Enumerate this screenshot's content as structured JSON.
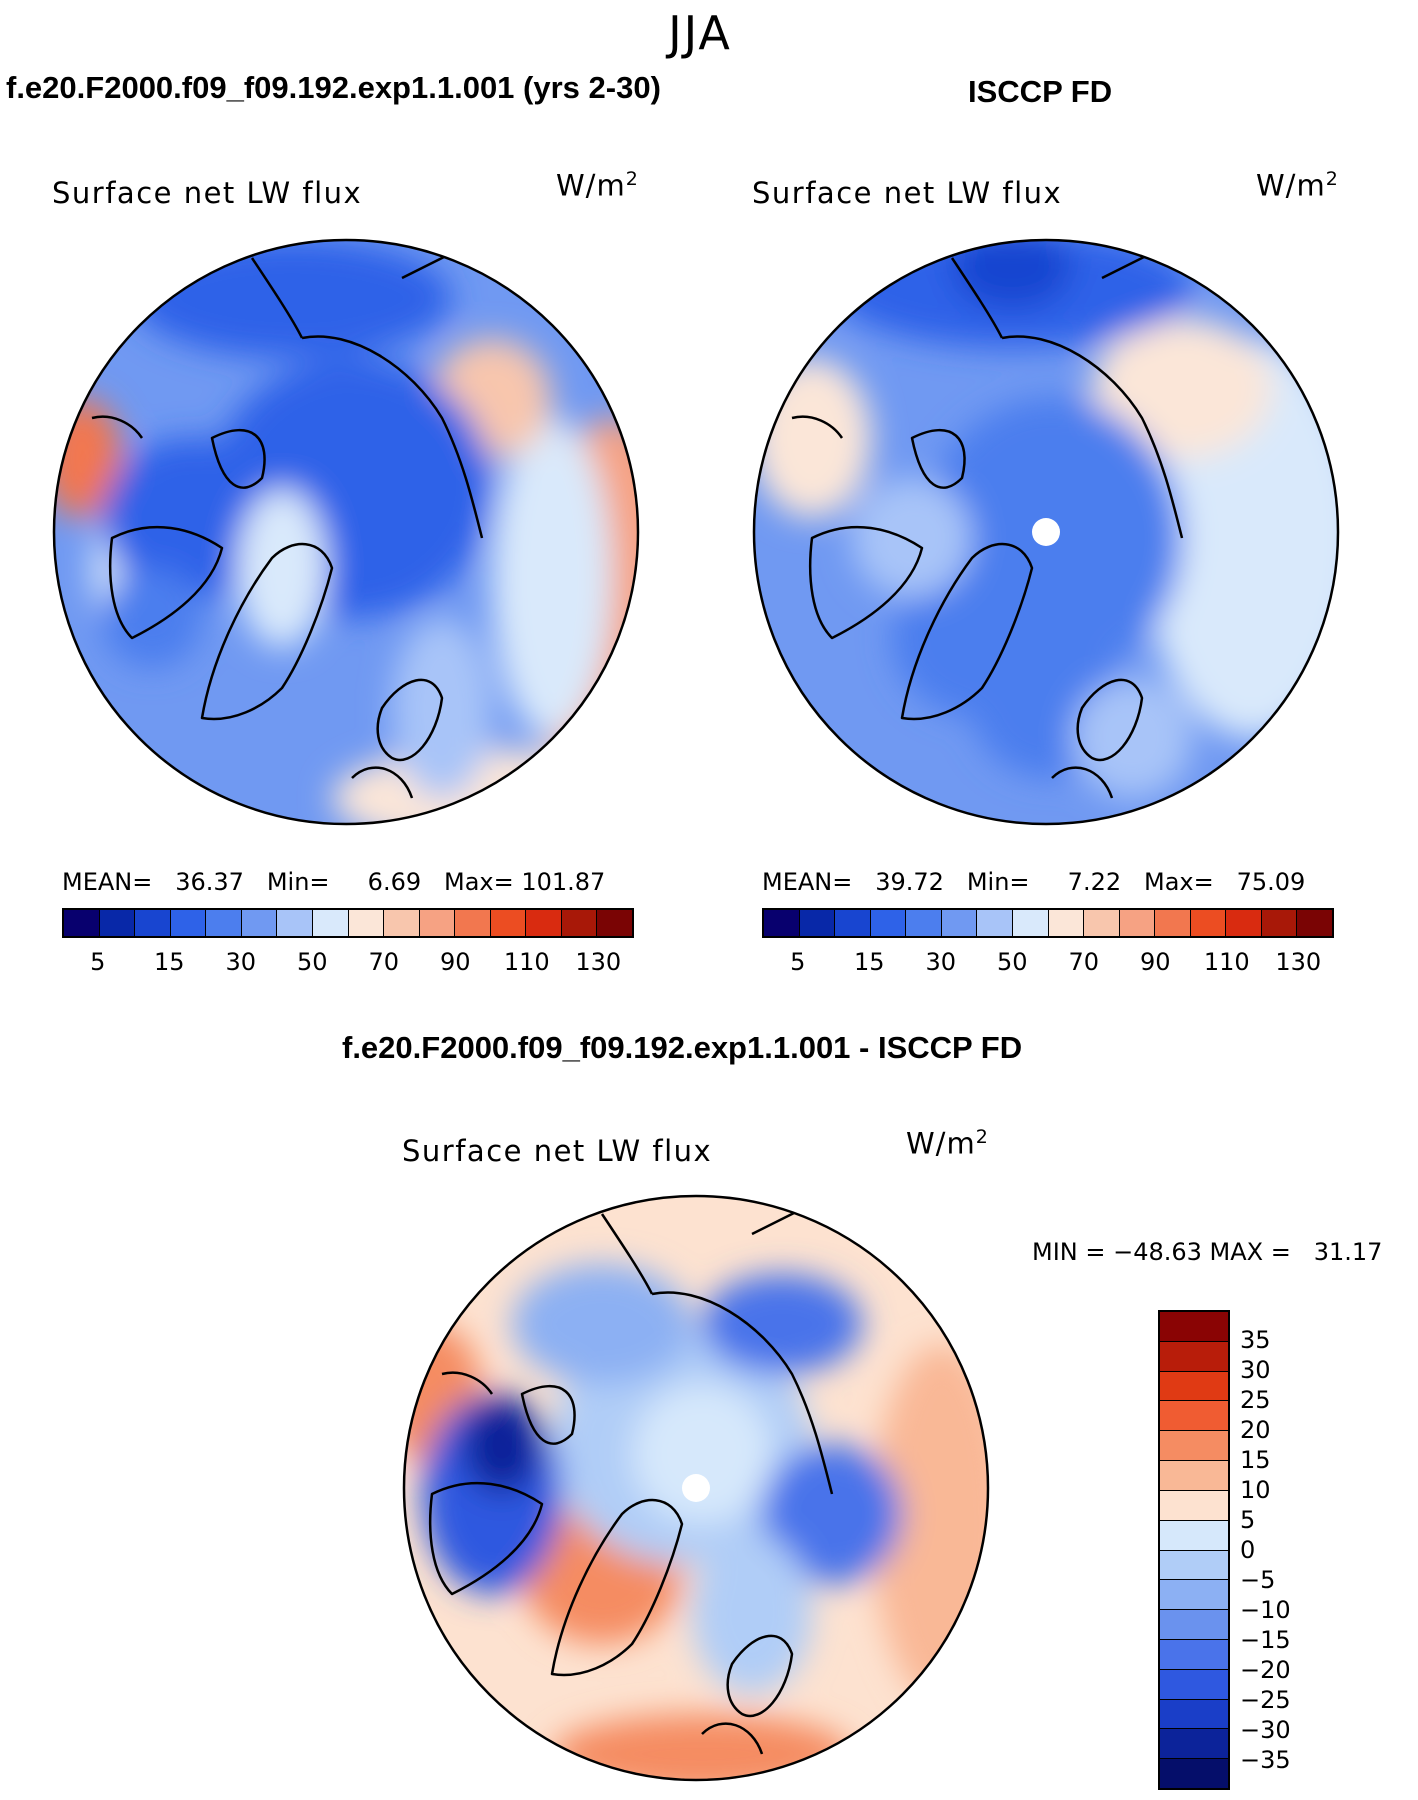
{
  "season": "JJA",
  "panels": {
    "model": {
      "case_title": "f.e20.F2000.f09_f09.192.exp1.1.001 (yrs 2-30)",
      "variable": "Surface net LW flux",
      "units": "W/m",
      "units_exp": "2",
      "stats": "MEAN=   36.37   Min=     6.69   Max= 101.87"
    },
    "obs": {
      "case_title": "ISCCP FD",
      "variable": "Surface net LW flux",
      "units": "W/m",
      "units_exp": "2",
      "stats": "MEAN=   39.72   Min=     7.22   Max=   75.09"
    },
    "diff": {
      "case_title": "f.e20.F2000.f09_f09.192.exp1.1.001 - ISCCP FD",
      "variable": "Surface net LW flux",
      "units": "W/m",
      "units_exp": "2",
      "stats": "MIN = −48.63 MAX =   31.17"
    }
  },
  "abs_colorbar": {
    "colors": [
      "#08006e",
      "#0828a8",
      "#1845d0",
      "#2e62e8",
      "#4c7eee",
      "#7099f2",
      "#a8c4f8",
      "#d9e9fb",
      "#fbe6d8",
      "#f8c6ad",
      "#f6a283",
      "#f2774f",
      "#ec4d22",
      "#d92b10",
      "#a81808",
      "#7a0404"
    ],
    "tick_labels": [
      "5",
      "15",
      "30",
      "50",
      "70",
      "90",
      "110",
      "130"
    ]
  },
  "diff_colorbar": {
    "colors": [
      "#8a0404",
      "#b81d0a",
      "#e03a14",
      "#f05c32",
      "#f58c62",
      "#f9b896",
      "#fde2d0",
      "#d6e8fb",
      "#b0cdf7",
      "#8cb0f3",
      "#6a92ee",
      "#4a73ea",
      "#2f58e0",
      "#1a3ec8",
      "#0c239a",
      "#050e6a"
    ],
    "tick_labels": [
      "35",
      "30",
      "25",
      "20",
      "15",
      "10",
      "5",
      "0",
      "−5",
      "−10",
      "−15",
      "−20",
      "−25",
      "−30",
      "−35"
    ]
  }
}
